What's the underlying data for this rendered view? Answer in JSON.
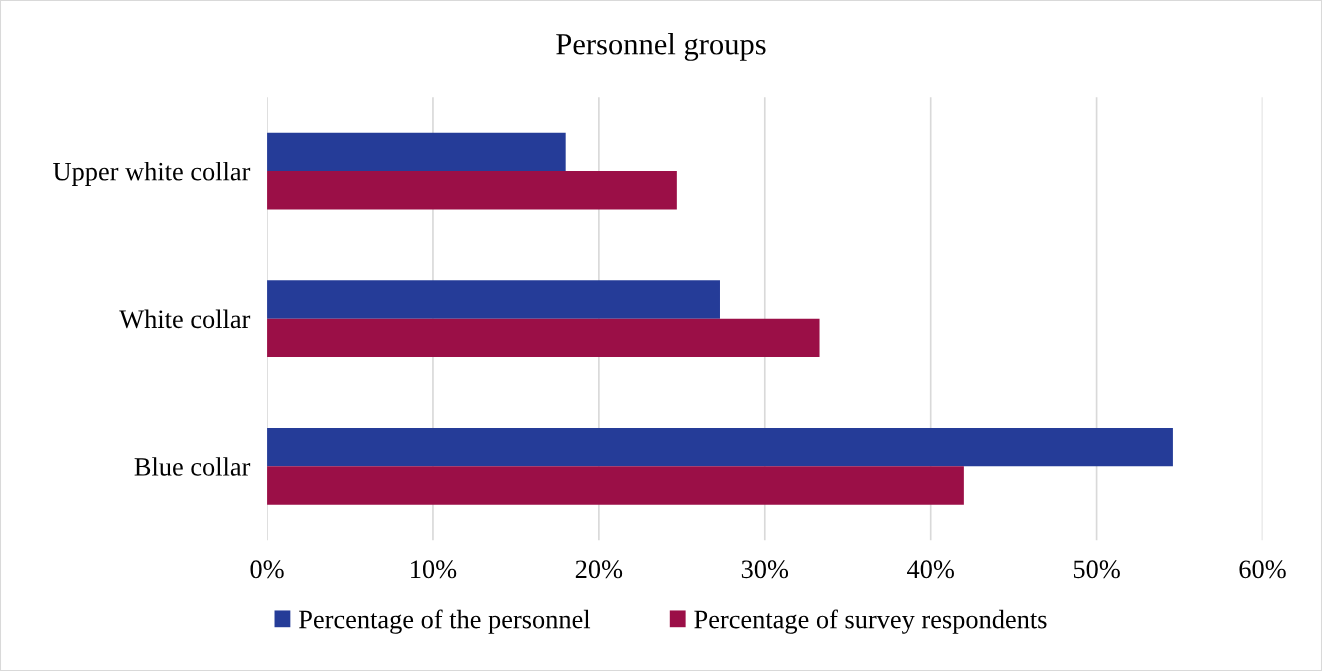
{
  "chart_data": {
    "type": "bar",
    "orientation": "horizontal",
    "title": "Personnel groups",
    "categories": [
      "Upper white collar",
      "White collar",
      "Blue collar"
    ],
    "series": [
      {
        "name": "Percentage of the personnel",
        "color": "#253c98",
        "values": [
          18.0,
          27.3,
          54.6
        ]
      },
      {
        "name": "Percentage of survey respondents",
        "color": "#9b0f47",
        "values": [
          24.7,
          33.3,
          42.0
        ]
      }
    ],
    "xlim": [
      0,
      60
    ],
    "xticks": [
      {
        "value": 0,
        "label": "0%"
      },
      {
        "value": 10,
        "label": "10%"
      },
      {
        "value": 20,
        "label": "20%"
      },
      {
        "value": 30,
        "label": "30%"
      },
      {
        "value": 40,
        "label": "40%"
      },
      {
        "value": 50,
        "label": "50%"
      },
      {
        "value": 60,
        "label": "60%"
      }
    ],
    "grid": "x",
    "legend": "bottom"
  }
}
